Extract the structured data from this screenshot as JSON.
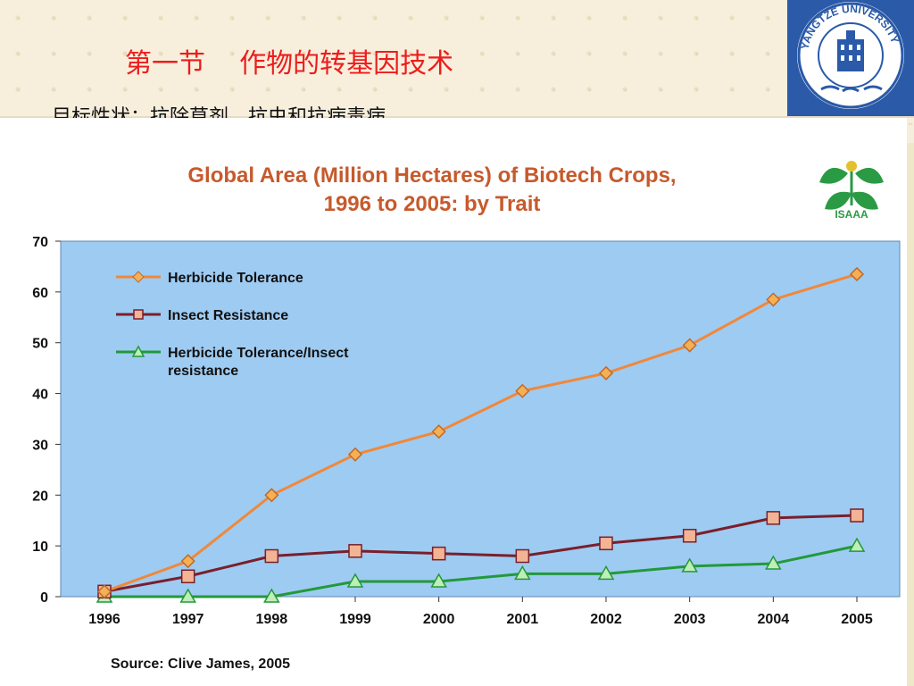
{
  "slide": {
    "title": "第一节    作物的转基因技术",
    "subtitle": "目标性状：抗除草剂、抗虫和抗病毒病",
    "logo_text": "YANGTZE UNIVERSITY"
  },
  "isaaa_label": "ISAAA",
  "colors": {
    "plot_bg": "#9ecbf2",
    "herbicide": "#f0883a",
    "insect": "#7a1f2b",
    "stacked": "#22993a",
    "title": "#c65a2c"
  },
  "chart_data": {
    "type": "line",
    "title_line1": "Global Area (Million Hectares) of Biotech Crops,",
    "title_line2": "1996 to 2005: by Trait",
    "source": "Source: Clive James, 2005",
    "categories": [
      "1996",
      "1997",
      "1998",
      "1999",
      "2000",
      "2001",
      "2002",
      "2003",
      "2004",
      "2005"
    ],
    "ylim": [
      0,
      70
    ],
    "yticks": [
      "0",
      "10",
      "20",
      "30",
      "40",
      "50",
      "60",
      "70"
    ],
    "series": [
      {
        "name": "Herbicide Tolerance",
        "values": [
          1,
          7,
          20,
          28,
          32.5,
          40.5,
          44,
          49.5,
          58.5,
          63.5
        ]
      },
      {
        "name": "Insect Resistance",
        "values": [
          1,
          4,
          8,
          9,
          8.5,
          8,
          10.5,
          12,
          15.5,
          16
        ]
      },
      {
        "name_line1": "Herbicide Tolerance/Insect",
        "name_line2": "resistance",
        "values": [
          0,
          0,
          0,
          3,
          3,
          4.5,
          4.5,
          6,
          6.5,
          10
        ]
      }
    ]
  }
}
